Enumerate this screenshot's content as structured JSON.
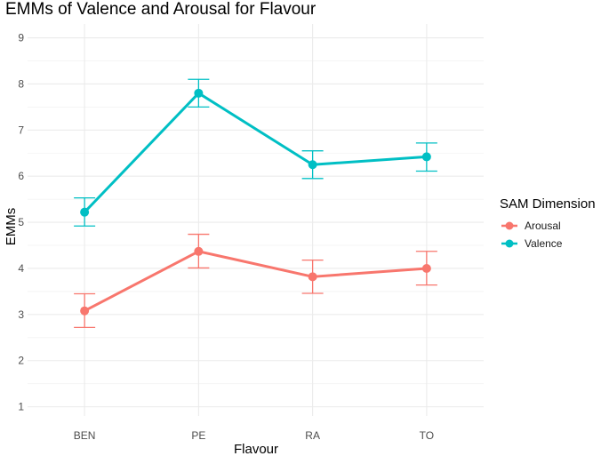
{
  "chart_data": {
    "type": "line",
    "title": "EMMs of Valence and Arousal for Flavour",
    "xlabel": "Flavour",
    "ylabel": "EMMs",
    "categories": [
      "BEN",
      "PE",
      "RA",
      "TO"
    ],
    "ylim": [
      0.8,
      9.3
    ],
    "yticks": [
      1,
      2,
      3,
      4,
      5,
      6,
      7,
      8,
      9
    ],
    "grid": true,
    "legend": {
      "title": "SAM Dimension",
      "position": "right"
    },
    "series": [
      {
        "name": "Arousal",
        "color": "#F8766D",
        "values": [
          3.08,
          4.37,
          3.82,
          4.0
        ],
        "lower": [
          2.72,
          4.01,
          3.46,
          3.64
        ],
        "upper": [
          3.45,
          4.74,
          4.18,
          4.37
        ]
      },
      {
        "name": "Valence",
        "color": "#00BFC4",
        "values": [
          5.22,
          7.8,
          6.25,
          6.42
        ],
        "lower": [
          4.92,
          7.5,
          5.95,
          6.11
        ],
        "upper": [
          5.53,
          8.1,
          6.55,
          6.72
        ]
      }
    ]
  }
}
